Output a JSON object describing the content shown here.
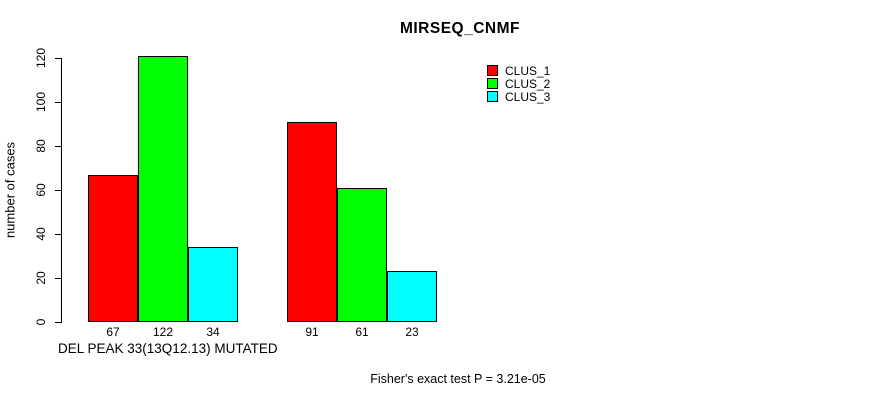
{
  "chart_data": {
    "type": "bar",
    "title": "MIRSEQ_CNMF",
    "categories": [
      "",
      ""
    ],
    "series": [
      {
        "name": "CLUS_1",
        "color": "#ff0000",
        "values": [
          67,
          91
        ]
      },
      {
        "name": "CLUS_2",
        "color": "#00ff00",
        "values": [
          122,
          61
        ]
      },
      {
        "name": "CLUS_3",
        "color": "#00ffff",
        "values": [
          34,
          23
        ]
      }
    ],
    "bar_labels": [
      [
        67,
        122,
        34
      ],
      [
        91,
        61,
        23
      ]
    ],
    "xlabel": "DEL PEAK 33(13Q12.13) MUTATED",
    "ylabel": "number of cases",
    "ylim": [
      0,
      122
    ],
    "yticks": [
      0,
      20,
      40,
      60,
      80,
      100,
      120
    ],
    "grid": false,
    "bar_border_color": "#000000",
    "legend": {
      "position": "top-right",
      "entries": [
        "CLUS_1",
        "CLUS_2",
        "CLUS_3"
      ]
    },
    "footnote": "Fisher's exact test P = 3.21e-05"
  }
}
